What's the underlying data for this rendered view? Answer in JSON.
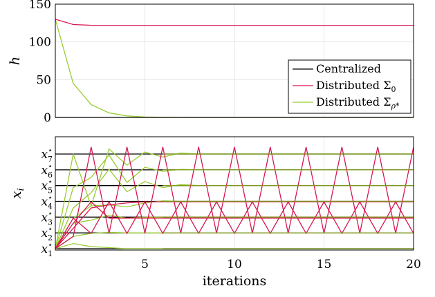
{
  "chart_data": [
    {
      "type": "line",
      "ylabel": "h",
      "xlim": [
        0,
        20
      ],
      "ylim": [
        0,
        150
      ],
      "yticks": [
        0,
        50,
        100,
        150
      ],
      "grid": true,
      "legend_position": "center-right",
      "series": [
        {
          "name": "Centralized",
          "color": "#000000",
          "x": [
            0,
            1,
            2,
            3,
            4,
            5,
            6,
            7,
            8,
            9,
            10,
            11,
            12,
            13,
            14,
            15,
            16,
            17,
            18,
            19,
            20
          ],
          "values": [
            0,
            0,
            0,
            0,
            0,
            0,
            0,
            0,
            0,
            0,
            0,
            0,
            0,
            0,
            0,
            0,
            0,
            0,
            0,
            0,
            0
          ]
        },
        {
          "name": "Distributed Σ0",
          "color": "#d6174f",
          "x": [
            0,
            1,
            2,
            3,
            4,
            5,
            6,
            7,
            8,
            9,
            10,
            11,
            12,
            13,
            14,
            15,
            16,
            17,
            18,
            19,
            20
          ],
          "values": [
            130,
            123,
            122,
            122,
            122,
            122,
            122,
            122,
            122,
            122,
            122,
            122,
            122,
            122,
            122,
            122,
            122,
            122,
            122,
            122,
            122
          ]
        },
        {
          "name": "Distributed Σρ*",
          "color": "#99cc33",
          "x": [
            0,
            1,
            2,
            3,
            4,
            5,
            6,
            7,
            8,
            9,
            10,
            11,
            12,
            13,
            14,
            15,
            16,
            17,
            18,
            19,
            20
          ],
          "values": [
            130,
            45,
            17,
            6,
            2,
            0.5,
            0.2,
            0.1,
            0,
            0,
            0,
            0,
            0,
            0,
            0,
            0,
            0,
            0,
            0,
            0,
            0
          ]
        }
      ],
      "legend": [
        {
          "label": "Centralized",
          "color": "#000000"
        },
        {
          "label": "Distributed Σ",
          "sub": "0",
          "color": "#d6174f"
        },
        {
          "label": "Distributed Σ",
          "sub": "ρ*",
          "color": "#99cc33"
        }
      ]
    },
    {
      "type": "line",
      "xlabel": "iterations",
      "ylabel": "x",
      "ylabel_sub": "i",
      "xlim": [
        0,
        20
      ],
      "xticks": [
        5,
        10,
        15,
        20
      ],
      "ylim": [
        0,
        1
      ],
      "ytick_labels": [
        {
          "base": "x",
          "sub": "1",
          "sup": "⋆",
          "value": 0.0
        },
        {
          "base": "x",
          "sub": "2",
          "sup": "⋆",
          "value": 0.155
        },
        {
          "base": "x",
          "sub": "3",
          "sup": "⋆",
          "value": 0.31
        },
        {
          "base": "x",
          "sub": "4",
          "sup": "⋆",
          "value": 0.465
        },
        {
          "base": "x",
          "sub": "5",
          "sup": "⋆",
          "value": 0.62
        },
        {
          "base": "x",
          "sub": "6",
          "sup": "⋆",
          "value": 0.775
        },
        {
          "base": "x",
          "sub": "7",
          "sup": "⋆",
          "value": 0.93
        }
      ],
      "grid": true,
      "centralized_levels": [
        0.0,
        0.155,
        0.31,
        0.465,
        0.62,
        0.775,
        0.93
      ],
      "distributed_sigma0": [
        {
          "x": [
            0,
            1,
            2,
            3,
            4,
            5,
            6,
            7,
            8,
            9,
            10,
            11,
            12,
            13,
            14,
            15,
            16,
            17,
            18,
            19,
            20
          ],
          "values": [
            0,
            0.2,
            0.4,
            0.43,
            0.45,
            0.46,
            0.46,
            0.46,
            0.46,
            0.46,
            0.46,
            0.46,
            0.46,
            0.46,
            0.46,
            0.46,
            0.46,
            0.46,
            0.46,
            0.46,
            0.46
          ]
        },
        {
          "x": [
            0,
            1,
            2,
            3,
            4,
            5,
            6,
            7,
            8,
            9,
            10,
            11,
            12,
            13,
            14,
            15,
            16,
            17,
            18,
            19,
            20
          ],
          "values": [
            0,
            0.12,
            1,
            0.15,
            1,
            0.15,
            1,
            0.15,
            1,
            0.15,
            1,
            0.15,
            1,
            0.15,
            1,
            0.15,
            1,
            0.15,
            1,
            0.15,
            1
          ]
        },
        {
          "x": [
            0,
            1,
            2,
            3,
            4,
            5,
            6,
            7,
            8,
            9,
            10,
            11,
            12,
            13,
            14,
            15,
            16,
            17,
            18,
            19,
            20
          ],
          "values": [
            0,
            0.3,
            0.15,
            0.46,
            0.15,
            0.46,
            0.15,
            0.46,
            0.15,
            0.46,
            0.15,
            0.46,
            0.15,
            0.46,
            0.15,
            0.46,
            0.15,
            0.46,
            0.15,
            0.46,
            0.15
          ]
        },
        {
          "x": [
            0,
            1,
            2,
            3,
            4,
            5,
            6,
            7,
            8,
            9,
            10,
            11,
            12,
            13,
            14,
            15,
            16,
            17,
            18,
            19,
            20
          ],
          "values": [
            0,
            0.25,
            0.46,
            0.3,
            0.3,
            0.3,
            0.3,
            0.3,
            0.3,
            0.3,
            0.3,
            0.3,
            0.3,
            0.3,
            0.3,
            0.3,
            0.3,
            0.3,
            0.3,
            0.3,
            0.3
          ]
        }
      ],
      "distributed_sigma_rho": [
        {
          "x": [
            0,
            1,
            2,
            3,
            4,
            5,
            6,
            7,
            8,
            9,
            10,
            11,
            12,
            13,
            14,
            15,
            16,
            17,
            18,
            19,
            20
          ],
          "values": [
            0,
            0.93,
            0.42,
            0.98,
            0.82,
            0.95,
            0.9,
            0.94,
            0.93,
            0.93,
            0.93,
            0.93,
            0.93,
            0.93,
            0.93,
            0.93,
            0.93,
            0.93,
            0.93,
            0.93,
            0.93
          ]
        },
        {
          "x": [
            0,
            1,
            2,
            3,
            4,
            5,
            6,
            7,
            8,
            9,
            10,
            11,
            12,
            13,
            14,
            15,
            16,
            17,
            18,
            19,
            20
          ],
          "values": [
            0,
            0.6,
            0.7,
            0.92,
            0.65,
            0.8,
            0.76,
            0.78,
            0.775,
            0.775,
            0.775,
            0.775,
            0.775,
            0.775,
            0.775,
            0.775,
            0.775,
            0.775,
            0.775,
            0.775,
            0.775
          ]
        },
        {
          "x": [
            0,
            1,
            2,
            3,
            4,
            5,
            6,
            7,
            8,
            9,
            10,
            11,
            12,
            13,
            14,
            15,
            16,
            17,
            18,
            19,
            20
          ],
          "values": [
            0,
            0.4,
            0.55,
            0.78,
            0.56,
            0.66,
            0.6,
            0.63,
            0.62,
            0.62,
            0.62,
            0.62,
            0.62,
            0.62,
            0.62,
            0.62,
            0.62,
            0.62,
            0.62,
            0.62,
            0.62
          ]
        },
        {
          "x": [
            0,
            1,
            2,
            3,
            4,
            5,
            6,
            7,
            8,
            9,
            10,
            11,
            12,
            13,
            14,
            15,
            16,
            17,
            18,
            19,
            20
          ],
          "values": [
            0,
            0.3,
            0.42,
            0.43,
            0.41,
            0.45,
            0.47,
            0.465,
            0.465,
            0.465,
            0.465,
            0.465,
            0.465,
            0.465,
            0.465,
            0.465,
            0.465,
            0.465,
            0.465,
            0.465,
            0.465
          ]
        },
        {
          "x": [
            0,
            1,
            2,
            3,
            4,
            5,
            6,
            7,
            8,
            9,
            10,
            11,
            12,
            13,
            14,
            15,
            16,
            17,
            18,
            19,
            20
          ],
          "values": [
            0,
            0.25,
            0.28,
            0.33,
            0.3,
            0.31,
            0.31,
            0.31,
            0.31,
            0.31,
            0.31,
            0.31,
            0.31,
            0.31,
            0.31,
            0.31,
            0.31,
            0.31,
            0.31,
            0.31,
            0.31
          ]
        },
        {
          "x": [
            0,
            1,
            2,
            3,
            4,
            5,
            6,
            7,
            8,
            9,
            10,
            11,
            12,
            13,
            14,
            15,
            16,
            17,
            18,
            19,
            20
          ],
          "values": [
            0,
            0.12,
            0.15,
            0.16,
            0.155,
            0.155,
            0.155,
            0.155,
            0.155,
            0.155,
            0.155,
            0.155,
            0.155,
            0.155,
            0.155,
            0.155,
            0.155,
            0.155,
            0.155,
            0.155,
            0.155
          ]
        },
        {
          "x": [
            0,
            1,
            2,
            3,
            4,
            5,
            6,
            7,
            8,
            9,
            10,
            11,
            12,
            13,
            14,
            15,
            16,
            17,
            18,
            19,
            20
          ],
          "values": [
            0,
            0.05,
            0.02,
            0.01,
            0,
            0,
            0,
            0,
            0,
            0,
            0,
            0,
            0,
            0,
            0,
            0,
            0,
            0,
            0,
            0,
            0
          ]
        }
      ]
    }
  ]
}
